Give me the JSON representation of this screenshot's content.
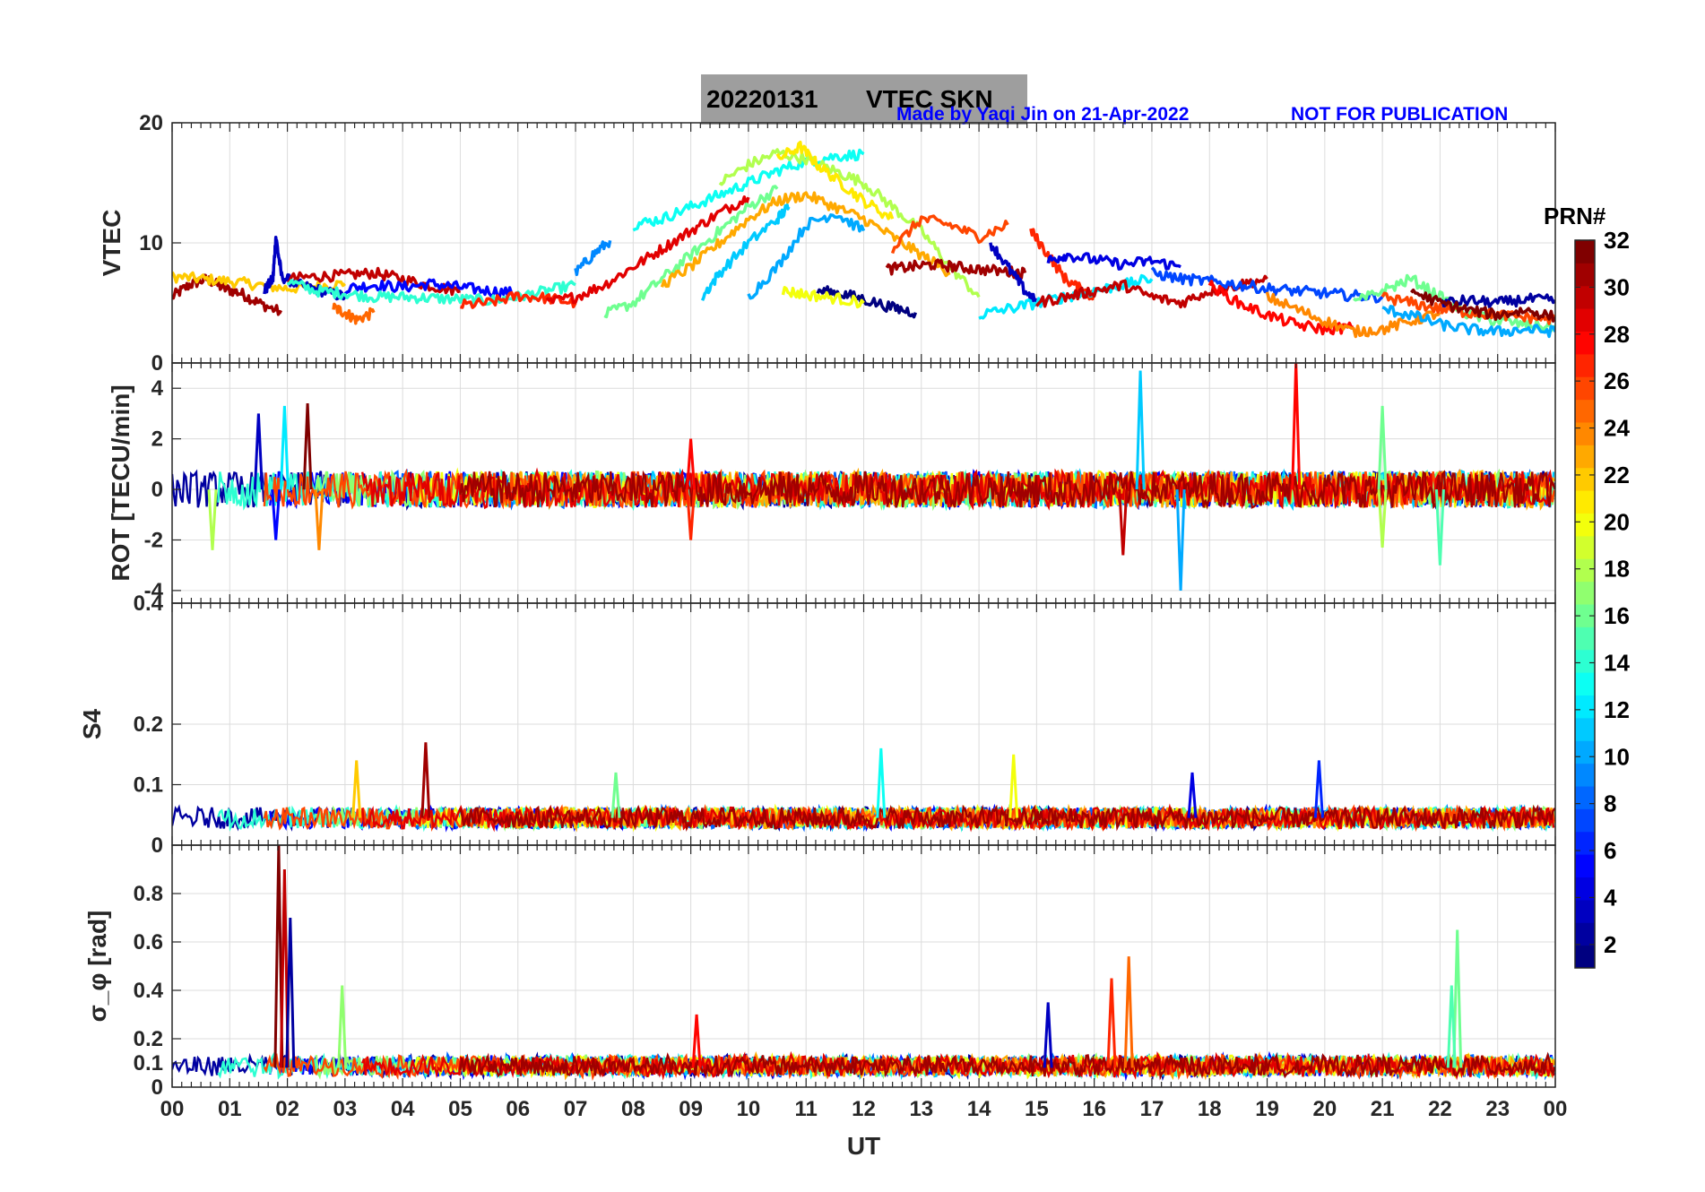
{
  "figure": {
    "title_date": "20220131",
    "title_label": "VTEC  SKN",
    "credit": "Made by Yaqi Jin on 21-Apr-2022",
    "notice": "NOT FOR PUBLICATION",
    "title_box_color": "#9e9e9e"
  },
  "chart_data": [
    {
      "type": "line",
      "panel": "vtec",
      "ylabel": "VTEC",
      "ylim": [
        0,
        20
      ],
      "yticks": [
        "0",
        "10",
        "20"
      ],
      "xlim": [
        0,
        24
      ],
      "xticks_labels_shown": false,
      "grid": true,
      "series_summary": "Multiple PRN arcs colored by PRN number (jet colormap)",
      "arcs": [
        {
          "prn": 31,
          "x": [
            0.0,
            0.3,
            0.6,
            0.9,
            1.2,
            1.5,
            1.9
          ],
          "y": [
            5.5,
            6.5,
            7.0,
            6.2,
            5.8,
            5.0,
            4.2
          ]
        },
        {
          "prn": 22,
          "x": [
            0.0,
            0.5,
            1.0,
            1.5,
            2.0,
            2.5,
            3.0
          ],
          "y": [
            7.2,
            7.0,
            6.8,
            6.5,
            6.2,
            6.4,
            6.6
          ]
        },
        {
          "prn": 3,
          "x": [
            1.6,
            1.75,
            1.8,
            1.9,
            2.2,
            2.6,
            3.0
          ],
          "y": [
            6.0,
            7.0,
            10.5,
            7.2,
            6.5,
            6.0,
            5.5
          ]
        },
        {
          "prn": 25,
          "x": [
            2.8,
            3.0,
            3.2,
            3.5
          ],
          "y": [
            4.6,
            4.2,
            3.6,
            4.2
          ]
        },
        {
          "prn": 30,
          "x": [
            2.0,
            2.5,
            3.0,
            3.5,
            4.0,
            4.5,
            5.0
          ],
          "y": [
            7.0,
            7.2,
            7.3,
            7.5,
            7.0,
            6.4,
            6.0
          ]
        },
        {
          "prn": 5,
          "x": [
            3.0,
            3.5,
            4.0,
            4.5,
            5.0,
            5.5,
            6.0
          ],
          "y": [
            6.2,
            6.5,
            6.3,
            6.6,
            6.3,
            6.0,
            5.8
          ]
        },
        {
          "prn": 14,
          "x": [
            2.0,
            2.5,
            3.0,
            3.5,
            4.0,
            4.5,
            5.0,
            5.5,
            6.0,
            6.5,
            7.0
          ],
          "y": [
            6.8,
            6.0,
            5.8,
            5.5,
            5.5,
            5.4,
            5.3,
            5.2,
            5.5,
            6.0,
            6.5
          ]
        },
        {
          "prn": 27,
          "x": [
            5.0,
            5.5,
            6.0,
            6.5,
            7.0
          ],
          "y": [
            4.8,
            5.0,
            5.6,
            5.4,
            5.0
          ]
        },
        {
          "prn": 9,
          "x": [
            7.0,
            7.3,
            7.6
          ],
          "y": [
            7.5,
            9.0,
            10.2
          ]
        },
        {
          "prn": 29,
          "x": [
            6.5,
            7.0,
            7.5,
            8.0,
            8.5,
            9.0,
            9.5,
            10.0
          ],
          "y": [
            5.0,
            5.5,
            6.5,
            8.0,
            9.5,
            11.0,
            12.5,
            13.8
          ]
        },
        {
          "prn": 13,
          "x": [
            8.0,
            8.5,
            9.0,
            9.5,
            10.0,
            10.5,
            11.0,
            11.5,
            12.0
          ],
          "y": [
            11.5,
            12.0,
            13.0,
            14.0,
            15.0,
            16.0,
            16.8,
            17.2,
            17.4
          ]
        },
        {
          "prn": 16,
          "x": [
            7.5,
            8.0,
            8.5,
            9.0,
            9.5,
            10.0,
            10.5
          ],
          "y": [
            4.0,
            5.0,
            7.0,
            9.0,
            11.0,
            13.0,
            14.5
          ]
        },
        {
          "prn": 18,
          "x": [
            9.5,
            10.0,
            10.5,
            11.0,
            11.5,
            12.0,
            12.5,
            13.0,
            13.5,
            14.0
          ],
          "y": [
            15.0,
            16.5,
            17.5,
            17.0,
            16.0,
            15.0,
            13.0,
            11.0,
            8.0,
            5.5
          ]
        },
        {
          "prn": 21,
          "x": [
            10.5,
            10.9,
            11.2,
            11.6,
            12.0,
            12.5
          ],
          "y": [
            17.0,
            18.0,
            16.5,
            15.0,
            13.5,
            12.0
          ]
        },
        {
          "prn": 11,
          "x": [
            9.2,
            9.5,
            10.0,
            10.5,
            10.7
          ],
          "y": [
            5.5,
            7.5,
            10.0,
            12.0,
            13.0
          ]
        },
        {
          "prn": 10,
          "x": [
            10.0,
            10.5,
            11.0,
            11.5,
            12.0
          ],
          "y": [
            5.5,
            8.0,
            11.5,
            12.5,
            11.0
          ]
        },
        {
          "prn": 23,
          "x": [
            8.5,
            9.0,
            9.5,
            10.0,
            10.5,
            11.0,
            11.5,
            12.0,
            12.5,
            13.0,
            13.5
          ],
          "y": [
            6.5,
            8.0,
            10.0,
            12.0,
            13.5,
            14.0,
            13.0,
            12.0,
            10.5,
            9.0,
            7.5
          ]
        },
        {
          "prn": 26,
          "x": [
            12.5,
            13.0,
            13.5,
            14.0,
            14.5
          ],
          "y": [
            9.5,
            12.0,
            11.5,
            10.5,
            11.5
          ]
        },
        {
          "prn": 1,
          "x": [
            11.2,
            11.6,
            12.0,
            12.5,
            12.9
          ],
          "y": [
            6.0,
            5.8,
            5.3,
            4.6,
            4.2
          ]
        },
        {
          "prn": 20,
          "x": [
            10.6,
            11.0,
            11.5,
            12.0
          ],
          "y": [
            6.0,
            5.7,
            5.4,
            5.0
          ]
        },
        {
          "prn": 31,
          "x": [
            12.4,
            12.8,
            13.2,
            13.6,
            14.0,
            14.5,
            14.8
          ],
          "y": [
            7.8,
            8.0,
            8.2,
            8.0,
            7.8,
            7.6,
            7.5
          ]
        },
        {
          "prn": 3,
          "x": [
            14.2,
            14.5,
            14.8,
            15.0
          ],
          "y": [
            10.0,
            8.0,
            6.0,
            5.0
          ]
        },
        {
          "prn": 27,
          "x": [
            14.9,
            15.2,
            15.5,
            15.8,
            16.0
          ],
          "y": [
            11.0,
            9.0,
            7.0,
            6.0,
            5.5
          ]
        },
        {
          "prn": 4,
          "x": [
            15.2,
            15.5,
            16.0,
            16.5,
            17.0,
            17.5
          ],
          "y": [
            8.5,
            9.0,
            8.6,
            8.2,
            8.5,
            8.0
          ]
        },
        {
          "prn": 12,
          "x": [
            14.0,
            14.5,
            15.0,
            15.5,
            16.0,
            16.5,
            17.0
          ],
          "y": [
            4.0,
            4.5,
            5.0,
            5.5,
            6.0,
            6.5,
            7.0
          ]
        },
        {
          "prn": 30,
          "x": [
            15.0,
            15.5,
            16.0,
            16.5,
            17.0,
            17.5,
            18.0,
            18.5,
            19.0
          ],
          "y": [
            5.0,
            5.5,
            6.0,
            6.5,
            5.5,
            5.0,
            6.0,
            6.5,
            7.0
          ]
        },
        {
          "prn": 7,
          "x": [
            17.0,
            17.5,
            18.0,
            18.5,
            19.0,
            19.5,
            20.0,
            20.5,
            21.0
          ],
          "y": [
            7.5,
            7.0,
            6.8,
            6.5,
            6.2,
            6.0,
            5.8,
            5.6,
            5.5
          ]
        },
        {
          "prn": 28,
          "x": [
            18.0,
            18.5,
            19.0,
            19.5,
            20.0,
            20.5
          ],
          "y": [
            6.5,
            5.0,
            4.0,
            3.2,
            2.8,
            3.0
          ]
        },
        {
          "prn": 24,
          "x": [
            19.0,
            19.5,
            20.0,
            20.5,
            21.0,
            21.5,
            22.0
          ],
          "y": [
            5.5,
            4.5,
            3.5,
            2.6,
            2.8,
            3.5,
            4.2
          ]
        },
        {
          "prn": 16,
          "x": [
            20.5,
            21.0,
            21.5,
            22.0,
            22.5,
            23.0,
            23.5,
            24.0
          ],
          "y": [
            5.0,
            6.0,
            7.0,
            5.5,
            4.0,
            3.5,
            3.2,
            3.0
          ]
        },
        {
          "prn": 2,
          "x": [
            22.0,
            22.5,
            23.0,
            23.5,
            24.0
          ],
          "y": [
            5.0,
            5.2,
            5.0,
            5.3,
            5.2
          ]
        },
        {
          "prn": 26,
          "x": [
            21.0,
            21.5,
            22.0,
            22.5,
            23.0,
            23.5,
            24.0
          ],
          "y": [
            5.5,
            5.0,
            4.5,
            4.2,
            4.0,
            3.8,
            3.6
          ]
        },
        {
          "prn": 10,
          "x": [
            21.0,
            21.5,
            22.0,
            22.5,
            23.0,
            23.5,
            24.0
          ],
          "y": [
            4.5,
            4.0,
            3.2,
            2.8,
            2.6,
            2.8,
            2.6
          ]
        },
        {
          "prn": 32,
          "x": [
            21.5,
            22.0,
            22.5,
            23.0,
            23.5,
            24.0
          ],
          "y": [
            6.0,
            5.0,
            4.4,
            4.0,
            4.4,
            3.8
          ]
        }
      ]
    },
    {
      "type": "line",
      "panel": "rot",
      "ylabel": "ROT [TECU/min]",
      "ylim": [
        -4.5,
        5
      ],
      "yticks": [
        "-4",
        "-2",
        "0",
        "2",
        "4"
      ],
      "xlim": [
        0,
        24
      ],
      "grid": true,
      "series_summary": "Rate of TEC, noisy around 0 (±1), spikes up to ~4.7 near 16.8 UT (PRN 11), ~5 near 19.5 UT (PRN 28), down to ~-4 near 17.5 UT (PRN 10)",
      "spikes": [
        {
          "prn": 3,
          "x": 1.5,
          "y": 3.0
        },
        {
          "prn": 5,
          "x": 1.8,
          "y": -2.0
        },
        {
          "prn": 32,
          "x": 2.35,
          "y": 3.4
        },
        {
          "prn": 12,
          "x": 1.95,
          "y": 3.3
        },
        {
          "prn": 24,
          "x": 2.55,
          "y": -2.4
        },
        {
          "prn": 18,
          "x": 0.7,
          "y": -2.4
        },
        {
          "prn": 27,
          "x": 9.0,
          "y": -2.0
        },
        {
          "prn": 28,
          "x": 9.0,
          "y": 2.0
        },
        {
          "prn": 30,
          "x": 16.5,
          "y": -2.6
        },
        {
          "prn": 11,
          "x": 16.8,
          "y": 4.7
        },
        {
          "prn": 10,
          "x": 17.5,
          "y": -4.0
        },
        {
          "prn": 28,
          "x": 19.5,
          "y": 5.0
        },
        {
          "prn": 16,
          "x": 21.0,
          "y": 3.3
        },
        {
          "prn": 18,
          "x": 21.0,
          "y": -2.3
        },
        {
          "prn": 15,
          "x": 22.0,
          "y": -3.0
        }
      ]
    },
    {
      "type": "line",
      "panel": "s4",
      "ylabel": "S4",
      "ylim": [
        0,
        0.4
      ],
      "yticks": [
        "0",
        "0.1",
        "0.2",
        "0.4"
      ],
      "xlim": [
        0,
        24
      ],
      "grid": true,
      "series_summary": "S4 index mostly 0.03-0.08 with occasional spikes",
      "spikes": [
        {
          "prn": 22,
          "x": 3.2,
          "y": 0.14
        },
        {
          "prn": 31,
          "x": 4.4,
          "y": 0.17
        },
        {
          "prn": 16,
          "x": 7.7,
          "y": 0.12
        },
        {
          "prn": 13,
          "x": 12.3,
          "y": 0.16
        },
        {
          "prn": 20,
          "x": 14.6,
          "y": 0.15
        },
        {
          "prn": 4,
          "x": 17.7,
          "y": 0.12
        },
        {
          "prn": 6,
          "x": 19.9,
          "y": 0.14
        }
      ]
    },
    {
      "type": "line",
      "panel": "sigma_phi",
      "ylabel": "σ_φ [rad]",
      "ylim": [
        0,
        1.0
      ],
      "yticks": [
        "0",
        "0.1",
        "0.2",
        "0.4",
        "0.6",
        "0.8"
      ],
      "xlim": [
        0,
        24
      ],
      "xlabel": "UT",
      "xticks": [
        "00",
        "01",
        "02",
        "03",
        "04",
        "05",
        "06",
        "07",
        "08",
        "09",
        "10",
        "11",
        "12",
        "13",
        "14",
        "15",
        "16",
        "17",
        "18",
        "19",
        "20",
        "21",
        "22",
        "23",
        "00"
      ],
      "grid": true,
      "series_summary": "Phase scintillation mostly 0.05-0.15 with spikes",
      "spikes": [
        {
          "prn": 32,
          "x": 1.85,
          "y": 1.0
        },
        {
          "prn": 30,
          "x": 1.95,
          "y": 0.9
        },
        {
          "prn": 2,
          "x": 2.05,
          "y": 0.7
        },
        {
          "prn": 17,
          "x": 2.95,
          "y": 0.42
        },
        {
          "prn": 28,
          "x": 9.1,
          "y": 0.3
        },
        {
          "prn": 3,
          "x": 15.2,
          "y": 0.35
        },
        {
          "prn": 27,
          "x": 16.3,
          "y": 0.45
        },
        {
          "prn": 25,
          "x": 16.6,
          "y": 0.54
        },
        {
          "prn": 16,
          "x": 22.3,
          "y": 0.65
        },
        {
          "prn": 15,
          "x": 22.2,
          "y": 0.42
        }
      ]
    }
  ],
  "colorbar": {
    "label": "PRN#",
    "range": [
      1,
      32
    ],
    "tick_labels": [
      "2",
      "4",
      "6",
      "8",
      "10",
      "12",
      "14",
      "16",
      "18",
      "20",
      "22",
      "24",
      "26",
      "28",
      "30",
      "32"
    ],
    "colormap": "jet"
  }
}
